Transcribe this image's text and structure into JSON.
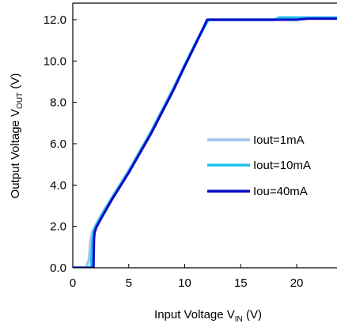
{
  "chart_data": {
    "type": "line",
    "xlabel": {
      "main": "Input Voltage V",
      "sub": "IN",
      "unit": " (V)"
    },
    "ylabel": {
      "main": "Output Voltage V",
      "sub": "OUT",
      "unit": " (V)"
    },
    "xlim": [
      0,
      23.6
    ],
    "ylim": [
      0,
      12.8
    ],
    "xticks": [
      0,
      5,
      10,
      15,
      20
    ],
    "xtick_labels": [
      "0",
      "5",
      "10",
      "15",
      "20"
    ],
    "yticks": [
      0,
      2,
      4,
      6,
      8,
      10,
      12
    ],
    "ytick_labels": [
      "0.0",
      "2.0",
      "4.0",
      "6.0",
      "8.0",
      "10.0",
      "12.0"
    ],
    "grid": false,
    "legend_position": "right",
    "series": [
      {
        "name": "Iout=1mA",
        "color": "#9dc3f0",
        "x": [
          0,
          1.2,
          1.45,
          1.6,
          1.75,
          2.0,
          2.6,
          3.5,
          5,
          7,
          9,
          10,
          11,
          12.1,
          14,
          18,
          18.5,
          23.6
        ],
        "y": [
          0,
          0,
          0.4,
          1.3,
          1.75,
          2.0,
          2.6,
          3.4,
          4.7,
          6.6,
          8.7,
          9.8,
          10.9,
          12.0,
          12.0,
          12.0,
          12.1,
          12.1
        ]
      },
      {
        "name": "Iout=10mA",
        "color": "#1fc0ec",
        "x": [
          0,
          1.65,
          1.75,
          1.85,
          1.95,
          2.1,
          2.6,
          3.5,
          5,
          7,
          9,
          10,
          11,
          12.1,
          14,
          18,
          18.5,
          23.6
        ],
        "y": [
          0,
          0,
          1.2,
          1.65,
          1.85,
          2.05,
          2.55,
          3.35,
          4.65,
          6.55,
          8.65,
          9.8,
          10.9,
          12.0,
          12.0,
          12.0,
          12.1,
          12.1
        ]
      },
      {
        "name": "Iou=40mA",
        "color": "#0a0ac8",
        "x": [
          0,
          1.85,
          1.9,
          1.95,
          2.1,
          2.6,
          3.5,
          5,
          7,
          9,
          10,
          11,
          12.0,
          14,
          18,
          20,
          21,
          23.6
        ],
        "y": [
          0,
          0,
          1.4,
          1.7,
          1.95,
          2.45,
          3.3,
          4.6,
          6.5,
          8.6,
          9.75,
          10.85,
          12.0,
          12.0,
          12.0,
          12.0,
          12.05,
          12.05
        ]
      }
    ]
  }
}
